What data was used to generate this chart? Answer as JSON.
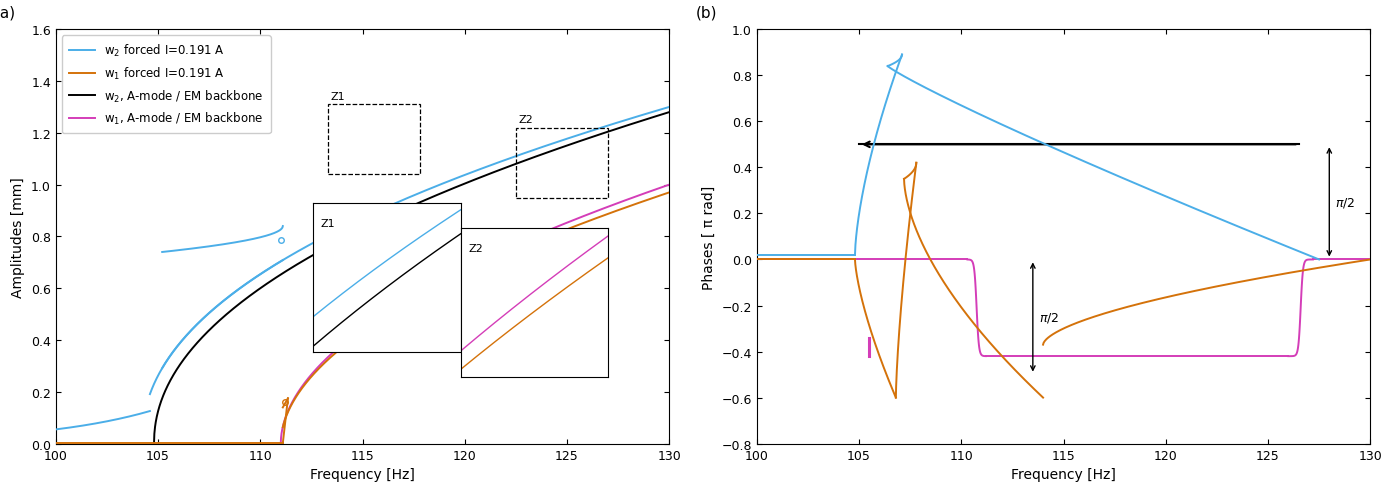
{
  "xlabel": "Frequency [Hz]",
  "ylabel_a": "Amplitudes [mm]",
  "ylabel_b": "Phases [ π rad]",
  "xlim": [
    100,
    130
  ],
  "ylim_a": [
    0,
    1.6
  ],
  "ylim_b": [
    -0.8,
    1.0
  ],
  "xticks": [
    100,
    105,
    110,
    115,
    120,
    125,
    130
  ],
  "yticks_a": [
    0,
    0.2,
    0.4,
    0.6,
    0.8,
    1.0,
    1.2,
    1.4,
    1.6
  ],
  "yticks_b": [
    -0.8,
    -0.6,
    -0.4,
    -0.2,
    0,
    0.2,
    0.4,
    0.6,
    0.8,
    1.0
  ],
  "col_blue": "#4baee8",
  "col_orange": "#d4720a",
  "col_black": "#000000",
  "col_magenta": "#d43db8",
  "lw": 1.4
}
